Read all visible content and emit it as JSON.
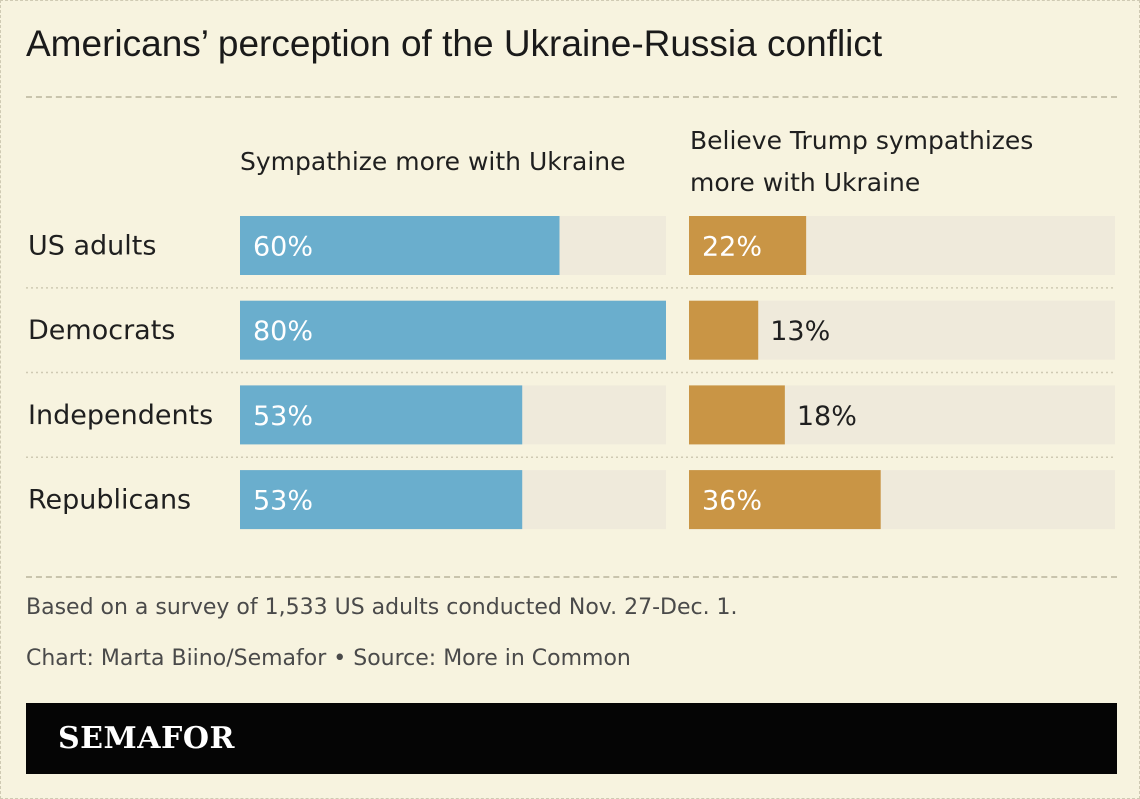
{
  "title": "Americans’ perception of the Ukraine-Russia conflict",
  "note": "Based on a survey of 1,533 US adults conducted Nov. 27-Dec. 1.",
  "credit": "Chart: Marta Biino/Semafor • Source: More in Common",
  "logo": "SEMAFOR",
  "colors": {
    "background": "#f7f3df",
    "track": "#efeadb",
    "ukraine_bar": "#6aaecd",
    "trump_bar": "#c99545"
  },
  "chart_data": {
    "type": "bar",
    "orientation": "horizontal",
    "categories": [
      "US adults",
      "Democrats",
      "Independents",
      "Republicans"
    ],
    "xlim": [
      0,
      100
    ],
    "series": [
      {
        "name": "Sympathize more with Ukraine",
        "values": [
          60,
          80,
          53,
          53
        ],
        "labels": [
          "60%",
          "80%",
          "53%",
          "53%"
        ]
      },
      {
        "name": "Believe Trump sympathizes more with Ukraine",
        "values": [
          22,
          13,
          18,
          36
        ],
        "labels": [
          "22%",
          "13%",
          "18%",
          "36%"
        ]
      }
    ]
  }
}
